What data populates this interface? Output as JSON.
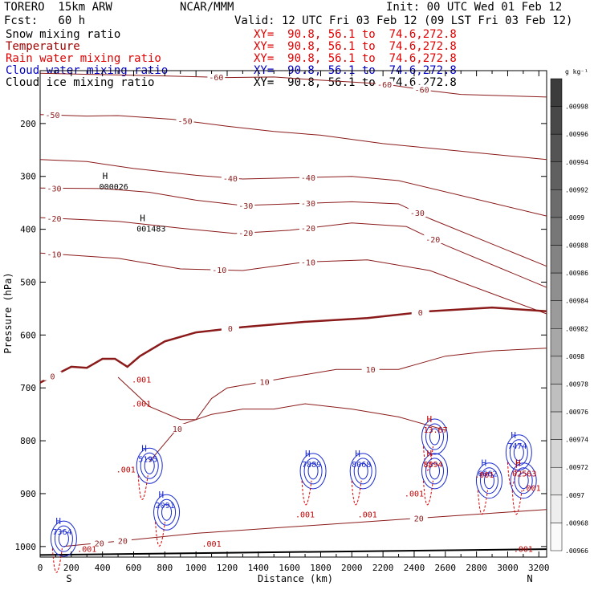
{
  "header": {
    "model": "TORERO  15km ARW",
    "center": "NCAR/MMM",
    "init": "Init: 00 UTC Wed 01 Feb 12",
    "fcst": "Fcst:   60 h",
    "valid": "Valid: 12 UTC Fri 03 Feb 12 (09 LST Fri 03 Feb 12)"
  },
  "fields": [
    {
      "name": "Snow mixing ratio",
      "xy": "XY=  90.8, 56.1 to  74.6,272.8",
      "color": "#000000"
    },
    {
      "name": "Temperature",
      "xy": "XY=  90.8, 56.1 to  74.6,272.8",
      "color": "#a00000"
    },
    {
      "name": "Rain water mixing ratio",
      "xy": "XY=  90.8, 56.1 to  74.6,272.8",
      "color": "#e00000"
    },
    {
      "name": "Cloud water mixing ratio",
      "xy": "XY=  90.8, 56.1 to  74.6,272.8",
      "color": "#0000c0"
    },
    {
      "name": "Cloud ice mixing ratio",
      "xy": "XY=  90.8, 56.1 to  74.6,272.8",
      "color": "#000000"
    }
  ],
  "colorbar": {
    "unit": "g kg⁻¹",
    "labels": [
      ".00998",
      ".00996",
      ".00994",
      ".00992",
      ".0099",
      ".00988",
      ".00986",
      ".00984",
      ".00982",
      ".0098",
      ".00978",
      ".00976",
      ".00974",
      ".00972",
      ".0097",
      ".00968",
      ".00966"
    ]
  },
  "chart_data": {
    "type": "cross-section contour",
    "xlabel": "Distance (km)",
    "ylabel": "Pressure (hPa)",
    "xlim": [
      0,
      3250
    ],
    "ylim": [
      1020,
      100
    ],
    "x_ticks": [
      0,
      100,
      200,
      300,
      400,
      500,
      600,
      700,
      800,
      900,
      1000,
      1100,
      1200,
      1300,
      1400,
      1500,
      1600,
      1700,
      1800,
      1900,
      2000,
      2100,
      2200,
      2300,
      2400,
      2500,
      2600,
      2700,
      2800,
      2900,
      3000,
      3100,
      3200
    ],
    "x_tick_labels": [
      "0",
      "200",
      "400",
      "600",
      "800",
      "1000",
      "1200",
      "1400",
      "1600",
      "1800",
      "2000",
      "2200",
      "2400",
      "2600",
      "2800",
      "3000",
      "3200"
    ],
    "y_ticks": [
      200,
      300,
      400,
      500,
      600,
      700,
      800,
      900,
      1000
    ],
    "endpoints": [
      "S",
      "N"
    ],
    "temperature_isotherms": [
      {
        "level": -60,
        "points": [
          [
            0,
            105
          ],
          [
            800,
            110
          ],
          [
            1200,
            113
          ],
          [
            1500,
            112
          ],
          [
            1800,
            118
          ],
          [
            2200,
            125
          ],
          [
            2500,
            138
          ],
          [
            2700,
            145
          ],
          [
            3250,
            150
          ]
        ],
        "labels": [
          [
            1130,
            -60
          ],
          [
            2210,
            -60
          ],
          [
            2450,
            -60
          ]
        ]
      },
      {
        "level": -50,
        "points": [
          [
            0,
            183
          ],
          [
            300,
            186
          ],
          [
            500,
            185
          ],
          [
            850,
            192
          ],
          [
            1200,
            205
          ],
          [
            1500,
            215
          ],
          [
            1800,
            222
          ],
          [
            2200,
            238
          ],
          [
            3250,
            268
          ]
        ],
        "labels": [
          [
            80,
            -50
          ],
          [
            930,
            -50
          ]
        ]
      },
      {
        "level": -40,
        "points": [
          [
            0,
            268
          ],
          [
            300,
            272
          ],
          [
            600,
            285
          ],
          [
            1000,
            298
          ],
          [
            1300,
            305
          ],
          [
            1700,
            302
          ],
          [
            2000,
            300
          ],
          [
            2300,
            308
          ],
          [
            3250,
            375
          ]
        ],
        "labels": [
          [
            1220,
            -40
          ],
          [
            1720,
            -40
          ]
        ]
      },
      {
        "level": -30,
        "points": [
          [
            0,
            322
          ],
          [
            400,
            323
          ],
          [
            700,
            330
          ],
          [
            1000,
            345
          ],
          [
            1300,
            355
          ],
          [
            1600,
            352
          ],
          [
            2000,
            348
          ],
          [
            2300,
            352
          ],
          [
            2500,
            380
          ],
          [
            3250,
            470
          ]
        ],
        "labels": [
          [
            90,
            -30
          ],
          [
            1320,
            -30
          ],
          [
            1720,
            -30
          ],
          [
            2420,
            -30
          ]
        ]
      },
      {
        "level": -20,
        "points": [
          [
            0,
            378
          ],
          [
            500,
            385
          ],
          [
            900,
            398
          ],
          [
            1250,
            408
          ],
          [
            1600,
            402
          ],
          [
            2000,
            388
          ],
          [
            2350,
            395
          ],
          [
            2600,
            430
          ],
          [
            3250,
            510
          ]
        ],
        "labels": [
          [
            90,
            -20
          ],
          [
            1320,
            -20
          ],
          [
            1720,
            -20
          ],
          [
            2520,
            -20
          ]
        ]
      },
      {
        "level": -10,
        "points": [
          [
            0,
            445
          ],
          [
            500,
            455
          ],
          [
            900,
            475
          ],
          [
            1300,
            478
          ],
          [
            1700,
            462
          ],
          [
            2100,
            458
          ],
          [
            2500,
            478
          ],
          [
            3250,
            560
          ]
        ],
        "labels": [
          [
            90,
            -10
          ],
          [
            1150,
            -10
          ],
          [
            1720,
            -10
          ]
        ]
      },
      {
        "level": 0,
        "points": [
          [
            0,
            690
          ],
          [
            200,
            660
          ],
          [
            300,
            662
          ],
          [
            400,
            645
          ],
          [
            480,
            645
          ],
          [
            560,
            660
          ],
          [
            640,
            640
          ],
          [
            800,
            612
          ],
          [
            1000,
            595
          ],
          [
            1300,
            585
          ],
          [
            1700,
            575
          ],
          [
            2100,
            568
          ],
          [
            2500,
            555
          ],
          [
            2900,
            548
          ],
          [
            3250,
            555
          ]
        ],
        "labels": [
          [
            80,
            0
          ],
          [
            1220,
            0
          ],
          [
            2440,
            0
          ]
        ]
      },
      {
        "level": 10,
        "points": [
          [
            500,
            680
          ],
          [
            700,
            735
          ],
          [
            900,
            760
          ],
          [
            1000,
            760
          ],
          [
            1100,
            720
          ],
          [
            1200,
            700
          ],
          [
            1400,
            690
          ],
          [
            1600,
            680
          ],
          [
            1900,
            665
          ],
          [
            2300,
            665
          ],
          [
            2600,
            640
          ],
          [
            2900,
            630
          ],
          [
            3250,
            625
          ]
        ],
        "labels": [
          [
            1440,
            10
          ],
          [
            2120,
            10
          ]
        ]
      },
      {
        "level": 10,
        "points": [
          [
            700,
            840
          ],
          [
            900,
            770
          ],
          [
            1100,
            750
          ],
          [
            1300,
            740
          ],
          [
            1500,
            740
          ],
          [
            1700,
            730
          ],
          [
            2000,
            740
          ],
          [
            2300,
            755
          ],
          [
            2600,
            780
          ]
        ],
        "labels": [
          [
            880,
            10
          ]
        ]
      },
      {
        "level": 20,
        "points": [
          [
            150,
            1000
          ],
          [
            500,
            990
          ],
          [
            1000,
            975
          ],
          [
            1500,
            965
          ],
          [
            2000,
            955
          ],
          [
            2500,
            945
          ],
          [
            3000,
            935
          ],
          [
            3250,
            930
          ]
        ],
        "labels": [
          [
            380,
            20
          ],
          [
            2430,
            20
          ],
          [
            530,
            20
          ]
        ]
      }
    ],
    "maxima": [
      {
        "x": 400,
        "p": 305,
        "value": "000026"
      },
      {
        "x": 640,
        "p": 385,
        "value": "001483"
      },
      {
        "x": 650,
        "p": 820,
        "value": "5195"
      },
      {
        "x": 760,
        "p": 908,
        "value": "2091"
      },
      {
        "x": 100,
        "p": 958,
        "value": "7364"
      },
      {
        "x": 1700,
        "p": 830,
        "value": "7889"
      },
      {
        "x": 2020,
        "p": 830,
        "value": "8068"
      },
      {
        "x": 2480,
        "p": 765,
        "value": "13.67"
      },
      {
        "x": 2480,
        "p": 830,
        "value": "8894"
      },
      {
        "x": 2830,
        "p": 848,
        "value": "6662"
      },
      {
        "x": 3020,
        "p": 795,
        "value": "7474"
      },
      {
        "x": 3050,
        "p": 848,
        "value": "02563"
      }
    ],
    "contour_labels": [
      {
        "x": 650,
        "p": 690,
        "value": ".001"
      },
      {
        "x": 650,
        "p": 735,
        "value": ".001"
      },
      {
        "x": 550,
        "p": 860,
        "value": ".001"
      },
      {
        "x": 1100,
        "p": 1000,
        "value": ".001"
      },
      {
        "x": 1700,
        "p": 945,
        "value": ".001"
      },
      {
        "x": 2100,
        "p": 945,
        "value": ".001"
      },
      {
        "x": 2400,
        "p": 905,
        "value": ".001"
      },
      {
        "x": 2850,
        "p": 870,
        "value": ".001"
      },
      {
        "x": 3150,
        "p": 895,
        "value": ".001"
      },
      {
        "x": 3100,
        "p": 1010,
        "value": ".001"
      },
      {
        "x": 300,
        "p": 1010,
        "value": ".001"
      }
    ],
    "grid": false
  }
}
